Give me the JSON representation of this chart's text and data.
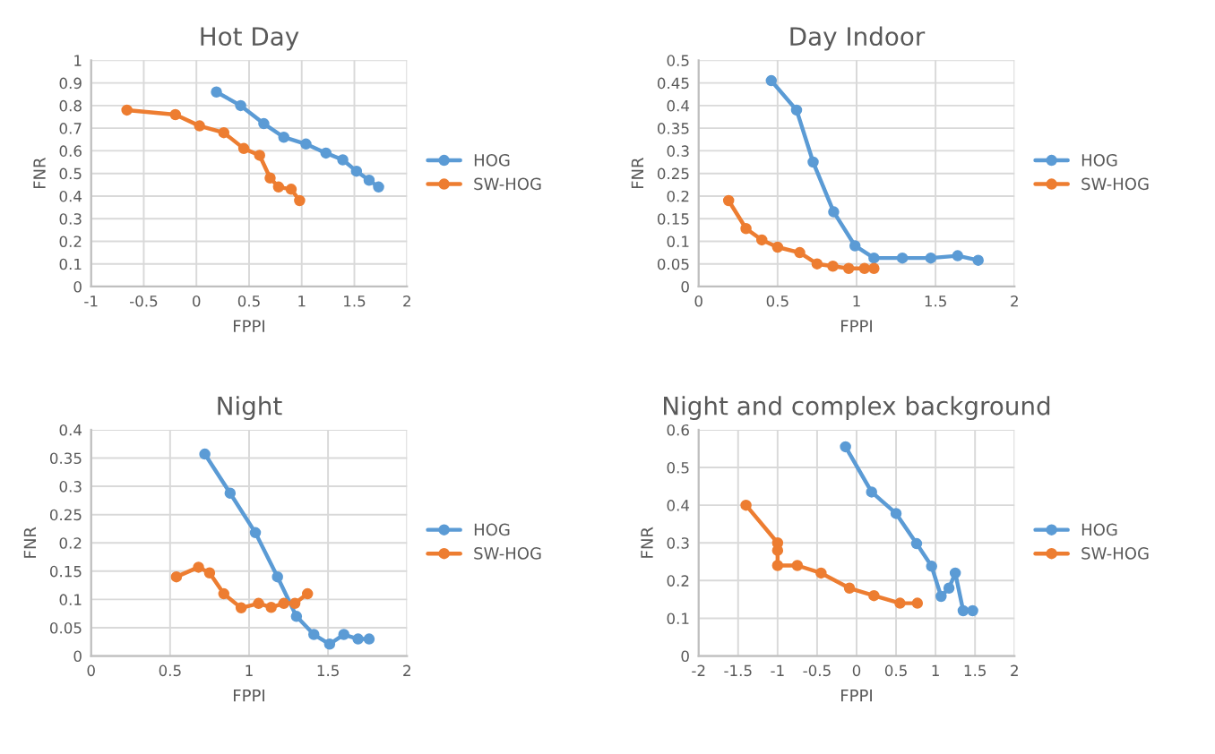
{
  "chart_data": [
    {
      "type": "line",
      "title": "Hot Day",
      "xlabel": "FPPI",
      "ylabel": "FNR",
      "xlim": [
        -1,
        2
      ],
      "xticks": [
        -1,
        -0.5,
        0,
        0.5,
        1,
        1.5,
        2
      ],
      "ylim": [
        0,
        1
      ],
      "yticks": [
        0,
        0.1,
        0.2,
        0.3,
        0.4,
        0.5,
        0.6,
        0.7,
        0.8,
        0.9,
        1
      ],
      "grid": true,
      "legend": "right",
      "marker": "circle",
      "series": [
        {
          "name": "HOG",
          "color": "#5b9bd5",
          "x": [
            0.19,
            0.42,
            0.64,
            0.83,
            1.04,
            1.23,
            1.39,
            1.52,
            1.64,
            1.73
          ],
          "values": [
            0.86,
            0.8,
            0.72,
            0.66,
            0.63,
            0.59,
            0.56,
            0.51,
            0.47,
            0.44
          ]
        },
        {
          "name": "SW-HOG",
          "color": "#ed7d31",
          "x": [
            -0.66,
            -0.2,
            0.03,
            0.26,
            0.45,
            0.6,
            0.7,
            0.78,
            0.9,
            0.98
          ],
          "values": [
            0.78,
            0.76,
            0.71,
            0.68,
            0.61,
            0.58,
            0.48,
            0.44,
            0.43,
            0.38
          ]
        }
      ]
    },
    {
      "type": "line",
      "title": "Day Indoor",
      "xlabel": "FPPI",
      "ylabel": "FNR",
      "xlim": [
        0,
        2
      ],
      "xticks": [
        0,
        0.5,
        1,
        1.5,
        2
      ],
      "ylim": [
        0,
        0.5
      ],
      "yticks": [
        0,
        0.05,
        0.1,
        0.15,
        0.2,
        0.25,
        0.3,
        0.35,
        0.4,
        0.45,
        0.5
      ],
      "grid": true,
      "legend": "right",
      "marker": "circle",
      "series": [
        {
          "name": "HOG",
          "color": "#5b9bd5",
          "x": [
            0.46,
            0.62,
            0.725,
            0.855,
            0.99,
            1.11,
            1.29,
            1.47,
            1.64,
            1.77
          ],
          "values": [
            0.455,
            0.39,
            0.275,
            0.165,
            0.09,
            0.063,
            0.063,
            0.063,
            0.068,
            0.058
          ]
        },
        {
          "name": "SW-HOG",
          "color": "#ed7d31",
          "x": [
            0.19,
            0.3,
            0.4,
            0.5,
            0.64,
            0.75,
            0.85,
            0.95,
            1.05,
            1.11
          ],
          "values": [
            0.19,
            0.128,
            0.103,
            0.087,
            0.075,
            0.05,
            0.045,
            0.04,
            0.04,
            0.04
          ]
        }
      ]
    },
    {
      "type": "line",
      "title": "Night",
      "xlabel": "FPPI",
      "ylabel": "FNR",
      "xlim": [
        0,
        2
      ],
      "xticks": [
        0,
        0.5,
        1,
        1.5,
        2
      ],
      "ylim": [
        0,
        0.4
      ],
      "yticks": [
        0,
        0.05,
        0.1,
        0.15,
        0.2,
        0.25,
        0.3,
        0.35,
        0.4
      ],
      "grid": true,
      "legend": "right",
      "marker": "circle",
      "series": [
        {
          "name": "HOG",
          "color": "#5b9bd5",
          "x": [
            0.72,
            0.88,
            1.04,
            1.18,
            1.3,
            1.41,
            1.51,
            1.6,
            1.69,
            1.76
          ],
          "values": [
            0.357,
            0.288,
            0.218,
            0.14,
            0.07,
            0.038,
            0.021,
            0.038,
            0.03,
            0.03
          ]
        },
        {
          "name": "SW-HOG",
          "color": "#ed7d31",
          "x": [
            0.54,
            0.68,
            0.75,
            0.84,
            0.95,
            1.06,
            1.14,
            1.22,
            1.29,
            1.37
          ],
          "values": [
            0.14,
            0.157,
            0.147,
            0.11,
            0.085,
            0.093,
            0.086,
            0.093,
            0.093,
            0.11
          ]
        }
      ]
    },
    {
      "type": "line",
      "title": "Night and complex background",
      "xlabel": "FPPI",
      "ylabel": "FNR",
      "xlim": [
        -2,
        2
      ],
      "xticks": [
        -2,
        -1.5,
        -1,
        -0.5,
        0,
        0.5,
        1,
        1.5,
        2
      ],
      "ylim": [
        0,
        0.6
      ],
      "yticks": [
        0,
        0.1,
        0.2,
        0.3,
        0.4,
        0.5,
        0.6
      ],
      "grid": true,
      "legend": "right",
      "marker": "circle",
      "series": [
        {
          "name": "HOG",
          "color": "#5b9bd5",
          "x": [
            -0.14,
            0.19,
            0.5,
            0.76,
            0.95,
            1.07,
            1.17,
            1.25,
            1.35,
            1.47
          ],
          "values": [
            0.555,
            0.435,
            0.378,
            0.298,
            0.238,
            0.158,
            0.18,
            0.22,
            0.12,
            0.12
          ]
        },
        {
          "name": "SW-HOG",
          "color": "#ed7d31",
          "x": [
            -1.4,
            -1.0,
            -1.0,
            -1.0,
            -0.75,
            -0.45,
            -0.09,
            0.22,
            0.55,
            0.77
          ],
          "values": [
            0.4,
            0.3,
            0.28,
            0.24,
            0.24,
            0.22,
            0.18,
            0.16,
            0.14,
            0.14
          ]
        }
      ]
    }
  ]
}
